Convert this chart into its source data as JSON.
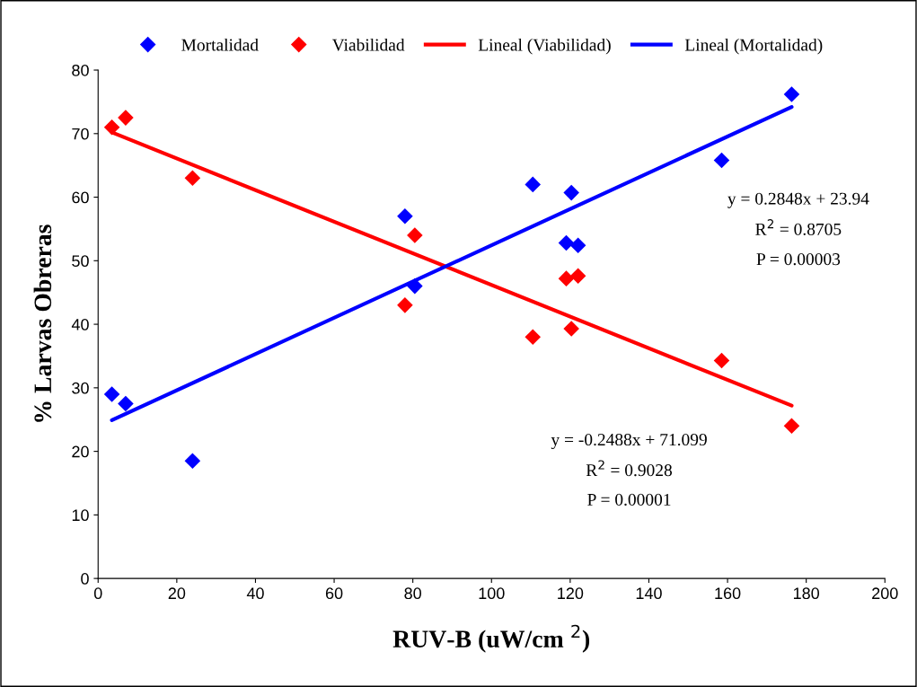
{
  "chart_data": {
    "type": "scatter",
    "xlabel": "RUV-B (uW/cm $^{2}$)",
    "ylabel": "% Larvas Obreras",
    "xlim": [
      0,
      200
    ],
    "xticks": [
      0,
      20,
      40,
      60,
      80,
      100,
      120,
      140,
      160,
      180,
      200
    ],
    "ylim": [
      0,
      80
    ],
    "yticks": [
      0,
      10,
      20,
      30,
      40,
      50,
      60,
      70,
      80
    ],
    "grid": false,
    "legend": "top",
    "marker": "diamond",
    "series": [
      {
        "name": "Mortalidad",
        "color": "#0000ff",
        "x": [
          3.5,
          7,
          24,
          78,
          80.5,
          110.5,
          119,
          120.3,
          122,
          158.5,
          176.3
        ],
        "values": [
          29,
          27.5,
          18.5,
          57,
          46,
          62,
          52.8,
          60.7,
          52.4,
          65.8,
          76.2
        ]
      },
      {
        "name": "Viabilidad",
        "color": "#ff0000",
        "x": [
          3.5,
          7,
          24,
          78,
          80.5,
          110.5,
          119,
          120.3,
          122,
          158.5,
          176.3
        ],
        "values": [
          71,
          72.5,
          63,
          43,
          54,
          38,
          47.2,
          39.3,
          47.6,
          34.3,
          24
        ]
      },
      {
        "name": "Lineal (Viabilidad)",
        "type": "line",
        "marker": "none",
        "color": "#ff0000",
        "x": [
          3.5,
          176.3
        ],
        "values": [
          70.2,
          27.2
        ]
      },
      {
        "name": "Lineal (Mortalidad)",
        "type": "line",
        "marker": "none",
        "color": "#0000ff",
        "x": [
          3.5,
          176.3
        ],
        "values": [
          24.9,
          74.2
        ]
      }
    ],
    "annotations": [
      "y = 0.2848x + 23.94",
      "R$^{2}$ = 0.8705",
      "P = 0.00003",
      "y = -0.2488x + 71.099",
      "R$^{2}$ = 0.9028",
      "P = 0.00001"
    ]
  }
}
